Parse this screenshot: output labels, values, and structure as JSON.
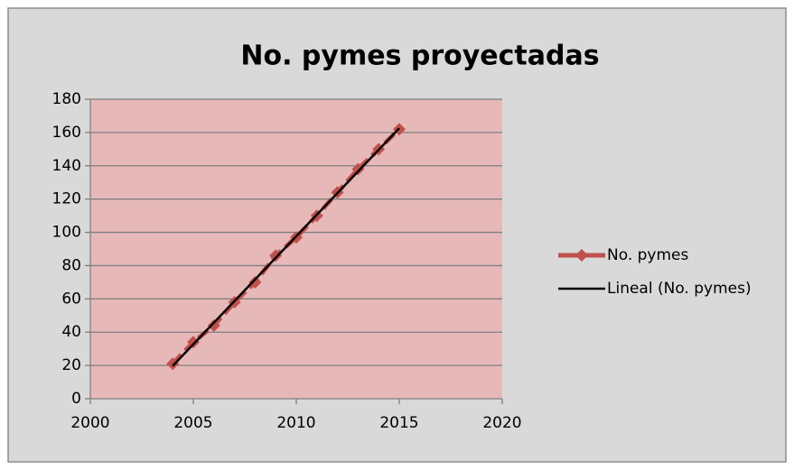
{
  "chart_data": {
    "type": "line",
    "title": "No. pymes proyectadas",
    "x": [
      2004,
      2005,
      2006,
      2007,
      2008,
      2009,
      2010,
      2011,
      2012,
      2013,
      2014,
      2015
    ],
    "series": [
      {
        "name": "No. pymes",
        "color": "#c0504d",
        "values": [
          21,
          34,
          44,
          58,
          70,
          86,
          97,
          110,
          124,
          138,
          150,
          162
        ]
      },
      {
        "name": "Lineal (No. pymes)",
        "color": "#000000",
        "trend": "linear"
      }
    ],
    "xlim": [
      2000,
      2020
    ],
    "xticks": [
      2000,
      2005,
      2010,
      2015,
      2020
    ],
    "ylim": [
      0,
      180
    ],
    "yticks": [
      0,
      20,
      40,
      60,
      80,
      100,
      120,
      140,
      160,
      180
    ],
    "grid": true,
    "legend": "right",
    "plot_color": "#e6b9b8"
  }
}
